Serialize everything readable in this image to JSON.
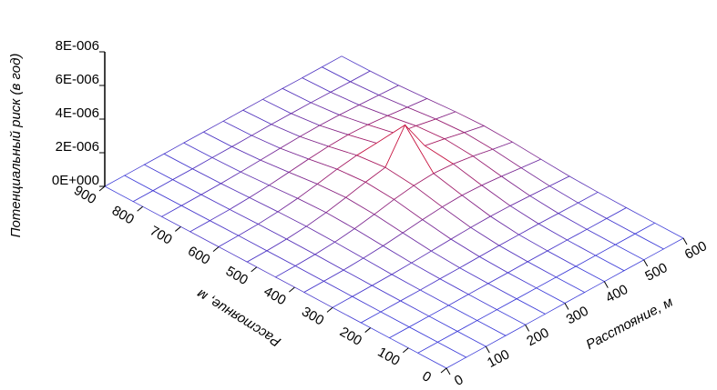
{
  "chart_data": {
    "type": "surface",
    "x_label": "Расстояние, м",
    "y_label": "Расстояние, м",
    "z_label": "Потенциальный риск (в год)",
    "x": [
      0,
      50,
      100,
      150,
      200,
      250,
      300,
      350,
      400,
      450,
      500,
      550,
      600
    ],
    "y": [
      0,
      75,
      150,
      225,
      300,
      375,
      450,
      525,
      600,
      675,
      750,
      825,
      900
    ],
    "z": [
      [
        0,
        0,
        0,
        0,
        0,
        0,
        0,
        0,
        0,
        0,
        0,
        0,
        0
      ],
      [
        0,
        0,
        0,
        0,
        0,
        0,
        0,
        0,
        0,
        0,
        0,
        0,
        0
      ],
      [
        0,
        0,
        0,
        0,
        1e-08,
        1e-08,
        1e-08,
        2e-08,
        2e-08,
        2e-08,
        1e-08,
        1e-08,
        1e-08
      ],
      [
        0,
        0,
        1e-08,
        1e-08,
        3e-08,
        4e-08,
        6e-08,
        8e-08,
        8e-08,
        8e-08,
        6e-08,
        4e-08,
        3e-08
      ],
      [
        0,
        1e-08,
        2e-08,
        4e-08,
        8e-08,
        1.4e-07,
        2e-07,
        2.5e-07,
        2.7e-07,
        2.5e-07,
        2e-07,
        1.4e-07,
        8e-08
      ],
      [
        1e-08,
        2e-08,
        4e-08,
        1e-07,
        1.9e-07,
        3.2e-07,
        4.6e-07,
        5.7e-07,
        6.2e-07,
        5.7e-07,
        4.6e-07,
        3.2e-07,
        1.9e-07
      ],
      [
        1e-08,
        3e-08,
        7e-08,
        1.6e-07,
        3.1e-07,
        5.2e-07,
        7.6e-07,
        9.4e-07,
        1.02e-06,
        9.4e-07,
        7.6e-07,
        5.2e-07,
        3.1e-07
      ],
      [
        1e-08,
        3e-08,
        8e-08,
        1.9e-07,
        3.7e-07,
        6.2e-07,
        8.9e-07,
        1.12e-06,
        3e-06,
        1.12e-06,
        8.9e-07,
        6.2e-07,
        3.7e-07
      ],
      [
        1e-08,
        3e-08,
        7e-08,
        1.6e-07,
        3.1e-07,
        5.2e-07,
        7.6e-07,
        9.4e-07,
        1.02e-06,
        9.4e-07,
        7.6e-07,
        5.2e-07,
        3.1e-07
      ],
      [
        1e-08,
        2e-08,
        4e-08,
        1e-07,
        1.9e-07,
        3.2e-07,
        4.6e-07,
        5.7e-07,
        6.2e-07,
        5.7e-07,
        4.6e-07,
        3.2e-07,
        1.9e-07
      ],
      [
        0,
        1e-08,
        2e-08,
        4e-08,
        8e-08,
        1.4e-07,
        2e-07,
        2.5e-07,
        2.7e-07,
        2.5e-07,
        2e-07,
        1.4e-07,
        8e-08
      ],
      [
        0,
        0,
        1e-08,
        1e-08,
        3e-08,
        4e-08,
        6e-08,
        8e-08,
        8e-08,
        8e-08,
        6e-08,
        4e-08,
        3e-08
      ],
      [
        0,
        0,
        0,
        0,
        1e-08,
        1e-08,
        1e-08,
        2e-08,
        2e-08,
        2e-08,
        1e-08,
        1e-08,
        1e-08
      ]
    ],
    "xlim": [
      0,
      600
    ],
    "ylim": [
      0,
      900
    ],
    "zlim": [
      0,
      8e-06
    ],
    "xticks": [
      0,
      100,
      200,
      300,
      400,
      500,
      600
    ],
    "yticks": [
      0,
      100,
      200,
      300,
      400,
      500,
      600,
      700,
      800,
      900
    ],
    "zticks": [
      {
        "value": 0,
        "label": "0E+000"
      },
      {
        "value": 2e-06,
        "label": "2E-006"
      },
      {
        "value": 4e-06,
        "label": "4E-006"
      },
      {
        "value": 6e-06,
        "label": "6E-006"
      },
      {
        "value": 8e-06,
        "label": "8E-006"
      }
    ],
    "color_low": "#3c3cd8",
    "color_high": "#ff0000"
  }
}
